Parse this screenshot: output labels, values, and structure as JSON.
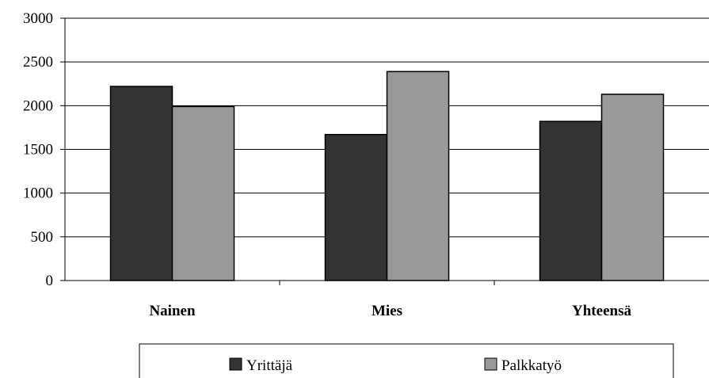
{
  "chart_data": {
    "type": "bar",
    "categories": [
      "Nainen",
      "Mies",
      "Yhteensä"
    ],
    "series": [
      {
        "name": "Yrittäjä",
        "values": [
          2220,
          1670,
          1820
        ],
        "color": "#333333"
      },
      {
        "name": "Palkkatyö",
        "values": [
          1990,
          2390,
          2130
        ],
        "color": "#999999"
      }
    ],
    "title": "",
    "xlabel": "",
    "ylabel": "",
    "ylim": [
      0,
      3000
    ],
    "yticks": [
      0,
      500,
      1000,
      1500,
      2000,
      2500,
      3000
    ],
    "grid": true,
    "legend_position": "bottom"
  }
}
